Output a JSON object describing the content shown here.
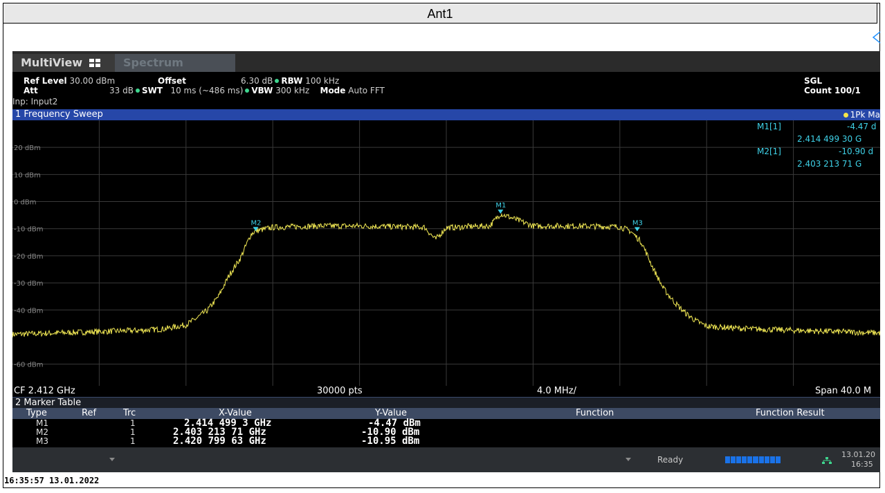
{
  "window": {
    "title": "Ant1"
  },
  "tabs": [
    {
      "label": "MultiView"
    },
    {
      "label": "Spectrum"
    }
  ],
  "settings": {
    "ref_level_label": "Ref Level",
    "ref_level_value": "30.00 dBm",
    "offset_label": "Offset",
    "offset_value": "6.30 dB",
    "rbw_label": "RBW",
    "rbw_value": "100 kHz",
    "att_label": "Att",
    "att_value": "33 dB",
    "swt_label": "SWT",
    "swt_value": "10 ms (~486 ms)",
    "vbw_label": "VBW",
    "vbw_value": "300 kHz",
    "mode_label": "Mode",
    "mode_value": "Auto FFT",
    "input": "Inp: Input2",
    "sgl": "SGL",
    "count": "Count 100/1"
  },
  "sweep_window": {
    "title": "1 Frequency Sweep",
    "trace_label": "1Pk Ma"
  },
  "marker_readout": {
    "m1_label": "M1[1]",
    "m1_level": "-4.47 d",
    "m1_freq": "2.414 499 30 G",
    "m2_label": "M2[1]",
    "m2_level": "-10.90 d",
    "m2_freq": "2.403 213 71 G"
  },
  "chart_data": {
    "type": "line",
    "xlabel": "",
    "ylabel": "",
    "x_range_ghz": [
      2.392,
      2.432
    ],
    "y_range_dbm": [
      -68,
      30
    ],
    "y_ticks": [
      {
        "label": "20 dBm",
        "value": 20
      },
      {
        "label": "10 dBm",
        "value": 10
      },
      {
        "label": "0 dBm",
        "value": 0
      },
      {
        "label": "-10 dBm",
        "value": -10
      },
      {
        "label": "-20 dBm",
        "value": -20
      },
      {
        "label": "-30 dBm",
        "value": -30
      },
      {
        "label": "-40 dBm",
        "value": -40
      },
      {
        "label": "-60 dBm",
        "value": -60
      }
    ],
    "grid": true,
    "series": [
      {
        "color": "#f3ea55",
        "x": [
          2.392,
          2.394,
          2.396,
          2.398,
          2.399,
          2.4,
          2.4005,
          2.401,
          2.4015,
          2.402,
          2.4025,
          2.403,
          2.4032,
          2.404,
          2.406,
          2.408,
          2.41,
          2.411,
          2.4115,
          2.412,
          2.4125,
          2.413,
          2.414,
          2.4145,
          2.416,
          2.418,
          2.42,
          2.4205,
          2.421,
          2.4215,
          2.422,
          2.4225,
          2.423,
          2.4235,
          2.424,
          2.426,
          2.428,
          2.43,
          2.432
        ],
        "y": [
          -49,
          -48.5,
          -48,
          -47.5,
          -47,
          -45.5,
          -43,
          -40,
          -35,
          -27,
          -21,
          -12,
          -10.9,
          -9.5,
          -9,
          -9,
          -9.3,
          -9.5,
          -14,
          -9.6,
          -9.5,
          -9.2,
          -9,
          -4.47,
          -9,
          -9,
          -9.3,
          -10.95,
          -15,
          -24,
          -32,
          -37,
          -41,
          -44,
          -46,
          -47,
          -47.5,
          -48,
          -48.5
        ]
      }
    ],
    "markers": [
      {
        "name": "M1",
        "x": 2.4144993,
        "y": -4.47
      },
      {
        "name": "M2",
        "x": 2.40321371,
        "y": -10.9
      },
      {
        "name": "M3",
        "x": 2.42079963,
        "y": -10.95
      }
    ]
  },
  "axis": {
    "cf": "CF 2.412 GHz",
    "pts": "30000 pts",
    "div": "4.0 MHz/",
    "span": "Span 40.0 M"
  },
  "marker_table": {
    "title": "2 Marker Table",
    "headers": {
      "type": "Type",
      "ref": "Ref",
      "trc": "Trc",
      "x": "X-Value",
      "y": "Y-Value",
      "func": "Function",
      "result": "Function Result"
    },
    "rows": [
      {
        "type": "M1",
        "trc": "1",
        "x": "2.414 499 3 GHz",
        "y": "-4.47 dBm"
      },
      {
        "type": "M2",
        "trc": "1",
        "x": "2.403 213 71 GHz",
        "y": "-10.90 dBm"
      },
      {
        "type": "M3",
        "trc": "1",
        "x": "2.420 799 63 GHz",
        "y": "-10.95 dBm"
      }
    ]
  },
  "status": {
    "state": "Ready",
    "progress_fraction": 1.0,
    "date": "13.01.20",
    "time": "16:35"
  },
  "timestamp": "16:35:57  13.01.2022"
}
